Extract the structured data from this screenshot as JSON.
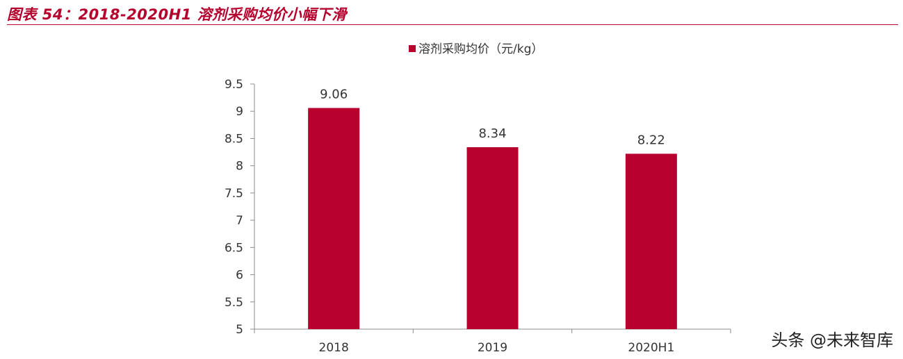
{
  "header": {
    "title": "图表 54：2018-2020H1 溶剂采购均价小幅下滑"
  },
  "chart_data": {
    "type": "bar",
    "title": "",
    "categories": [
      "2018",
      "2019",
      "2020H1"
    ],
    "series": [
      {
        "name": "溶剂采购均价（元/kg）",
        "values": [
          9.06,
          8.34,
          8.22
        ],
        "color": "#b8002f"
      }
    ],
    "data_labels": [
      "9.06",
      "8.34",
      "8.22"
    ],
    "xlabel": "",
    "ylabel": "",
    "ylim": [
      5,
      9.5
    ],
    "yticks": [
      5,
      5.5,
      6,
      6.5,
      7,
      7.5,
      8,
      8.5,
      9,
      9.5
    ],
    "ytick_labels": [
      "5",
      "5.5",
      "6",
      "6.5",
      "7",
      "7.5",
      "8",
      "8.5",
      "9",
      "9.5"
    ],
    "grid": false,
    "legend_position": "top-center"
  },
  "colors": {
    "accent": "#b5002d",
    "bar": "#b8002f",
    "axis": "#8c8c8c",
    "text": "#333333"
  },
  "watermark": {
    "text": "头条 @未来智库"
  }
}
